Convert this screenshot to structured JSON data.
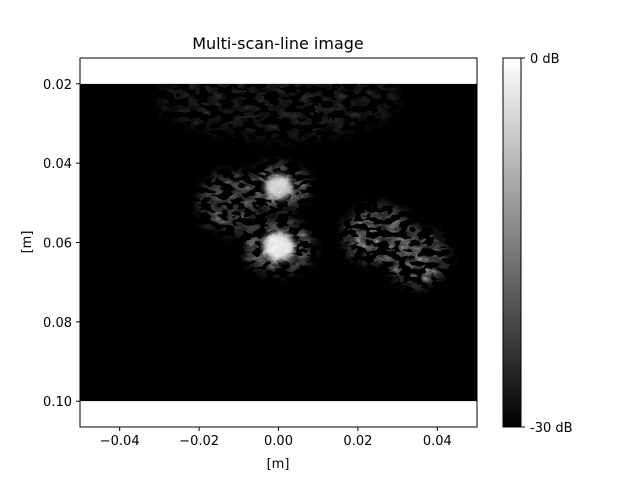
{
  "chart_data": {
    "type": "heatmap",
    "title": "Multi-scan-line image",
    "xlabel": "[m]",
    "ylabel": "[m]",
    "xlim": [
      -0.05,
      0.05
    ],
    "ylim": [
      0.1065,
      0.0135
    ],
    "y_inverted": true,
    "image_extent": {
      "x": [
        -0.05,
        0.05
      ],
      "z": [
        0.02,
        0.1
      ]
    },
    "x_ticks": [
      {
        "value": -0.04,
        "label": "−0.04"
      },
      {
        "value": -0.02,
        "label": "−0.02"
      },
      {
        "value": 0.0,
        "label": "0.00"
      },
      {
        "value": 0.02,
        "label": "0.02"
      },
      {
        "value": 0.04,
        "label": "0.04"
      }
    ],
    "y_ticks": [
      {
        "value": 0.02,
        "label": "0.02"
      },
      {
        "value": 0.04,
        "label": "0.04"
      },
      {
        "value": 0.06,
        "label": "0.06"
      },
      {
        "value": 0.08,
        "label": "0.08"
      },
      {
        "value": 0.1,
        "label": "0.10"
      }
    ],
    "colormap": "gray",
    "color_range_db": [
      -30,
      0
    ],
    "colorbar": {
      "top_label": "0 dB",
      "bottom_label": "-30 dB",
      "placement": "right"
    },
    "bright_regions": [
      {
        "name": "center-upper",
        "x": 0.0,
        "z": 0.046,
        "level_db": -3
      },
      {
        "name": "center-lower",
        "x": 0.0,
        "z": 0.061,
        "level_db": 0
      },
      {
        "name": "right-cluster-a",
        "x": 0.025,
        "z": 0.058,
        "level_db": -7
      },
      {
        "name": "right-cluster-b",
        "x": 0.035,
        "z": 0.064,
        "level_db": -9
      },
      {
        "name": "left-cluster",
        "x": -0.012,
        "z": 0.05,
        "level_db": -14
      }
    ],
    "grid": false,
    "legend": "none"
  }
}
